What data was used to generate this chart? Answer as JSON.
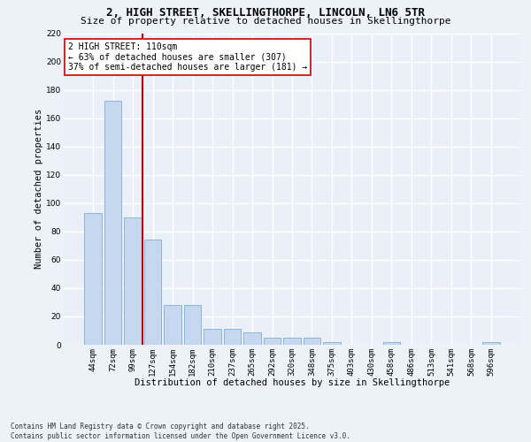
{
  "title_line1": "2, HIGH STREET, SKELLINGTHORPE, LINCOLN, LN6 5TR",
  "title_line2": "Size of property relative to detached houses in Skellingthorpe",
  "xlabel": "Distribution of detached houses by size in Skellingthorpe",
  "ylabel": "Number of detached properties",
  "categories": [
    "44sqm",
    "72sqm",
    "99sqm",
    "127sqm",
    "154sqm",
    "182sqm",
    "210sqm",
    "237sqm",
    "265sqm",
    "292sqm",
    "320sqm",
    "348sqm",
    "375sqm",
    "403sqm",
    "430sqm",
    "458sqm",
    "486sqm",
    "513sqm",
    "541sqm",
    "568sqm",
    "596sqm"
  ],
  "values": [
    93,
    172,
    90,
    74,
    28,
    28,
    11,
    11,
    9,
    5,
    5,
    5,
    2,
    0,
    0,
    2,
    0,
    0,
    0,
    0,
    2
  ],
  "bar_color": "#c5d8f0",
  "bar_edge_color": "#7bafd4",
  "vline_color": "#cc0000",
  "annotation_text": "2 HIGH STREET: 110sqm\n← 63% of detached houses are smaller (307)\n37% of semi-detached houses are larger (181) →",
  "annotation_box_color": "#ffffff",
  "annotation_box_edge_color": "#cc0000",
  "ylim": [
    0,
    220
  ],
  "yticks": [
    0,
    20,
    40,
    60,
    80,
    100,
    120,
    140,
    160,
    180,
    200,
    220
  ],
  "bg_color": "#eaeff8",
  "grid_color": "#ffffff",
  "footer_line1": "Contains HM Land Registry data © Crown copyright and database right 2025.",
  "footer_line2": "Contains public sector information licensed under the Open Government Licence v3.0.",
  "title_fontsize": 9,
  "subtitle_fontsize": 8,
  "axis_label_fontsize": 7.5,
  "tick_fontsize": 6.5,
  "annotation_fontsize": 7,
  "footer_fontsize": 5.5,
  "ylabel_fontsize": 7.5
}
